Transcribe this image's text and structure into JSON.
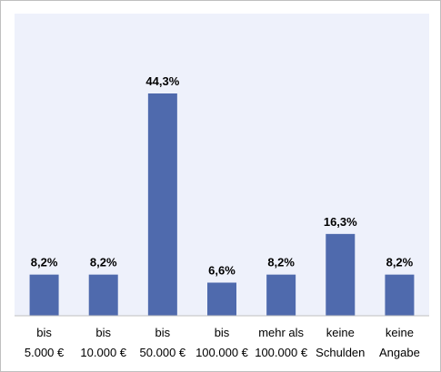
{
  "chart_data": {
    "type": "bar",
    "title": "",
    "xlabel": "",
    "ylabel": "",
    "ylim": [
      0,
      50
    ],
    "grid": false,
    "legend": "none",
    "categories": [
      [
        "bis",
        "5.000 €"
      ],
      [
        "bis",
        "10.000 €"
      ],
      [
        "bis",
        "50.000 €"
      ],
      [
        "bis",
        "100.000 €"
      ],
      [
        "mehr als",
        "100.000 €"
      ],
      [
        "keine",
        "Schulden"
      ],
      [
        "keine",
        "Angabe"
      ]
    ],
    "values": [
      8.2,
      8.2,
      44.3,
      6.6,
      8.2,
      16.3,
      8.2
    ],
    "value_labels": [
      "8,2%",
      "8,2%",
      "44,3%",
      "6,6%",
      "8,2%",
      "16,3%",
      "8,2%"
    ],
    "colors": {
      "bar": "#4f6aad",
      "plot_background": "#eef1fb",
      "axis": "#bfbfbf"
    }
  }
}
